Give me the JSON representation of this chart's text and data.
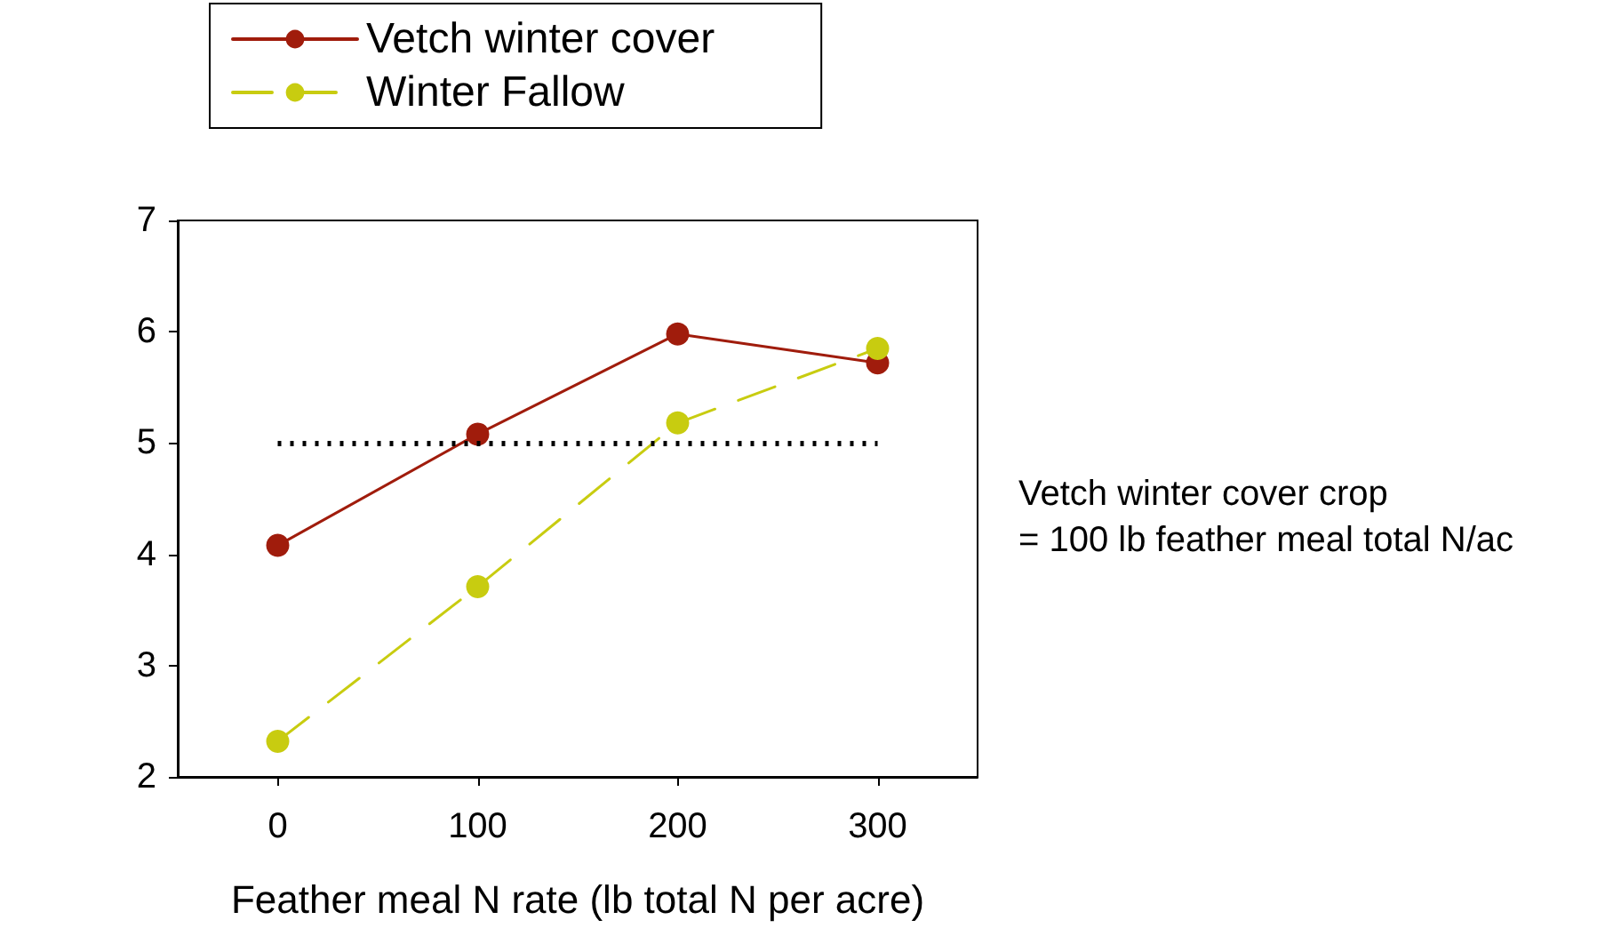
{
  "chart_data": {
    "type": "line",
    "xlabel": "Feather meal N rate (lb total N per acre)",
    "x": [
      0,
      100,
      200,
      300
    ],
    "series": [
      {
        "name": "Vetch winter cover",
        "color": "#a01c0c",
        "values": [
          4.08,
          5.08,
          5.98,
          5.72
        ],
        "line_style": "solid"
      },
      {
        "name": "Winter Fallow",
        "color": "#c8cc10",
        "values": [
          2.32,
          3.71,
          5.18,
          5.85
        ],
        "line_style": "dashed"
      }
    ],
    "xlim": [
      -50,
      350
    ],
    "xticks": [
      0,
      100,
      200,
      300
    ],
    "ylim": [
      2,
      7
    ],
    "yticks": [
      2,
      3,
      4,
      5,
      6,
      7
    ],
    "ref_lines": [
      {
        "axis": "y",
        "value": 5,
        "color": "#000000",
        "line_style": "dotted"
      }
    ],
    "annotations": [
      "Vetch winter cover crop\n= 100 lb feather meal total N/ac"
    ],
    "marker": "circle",
    "legend": "top",
    "grid": false
  }
}
